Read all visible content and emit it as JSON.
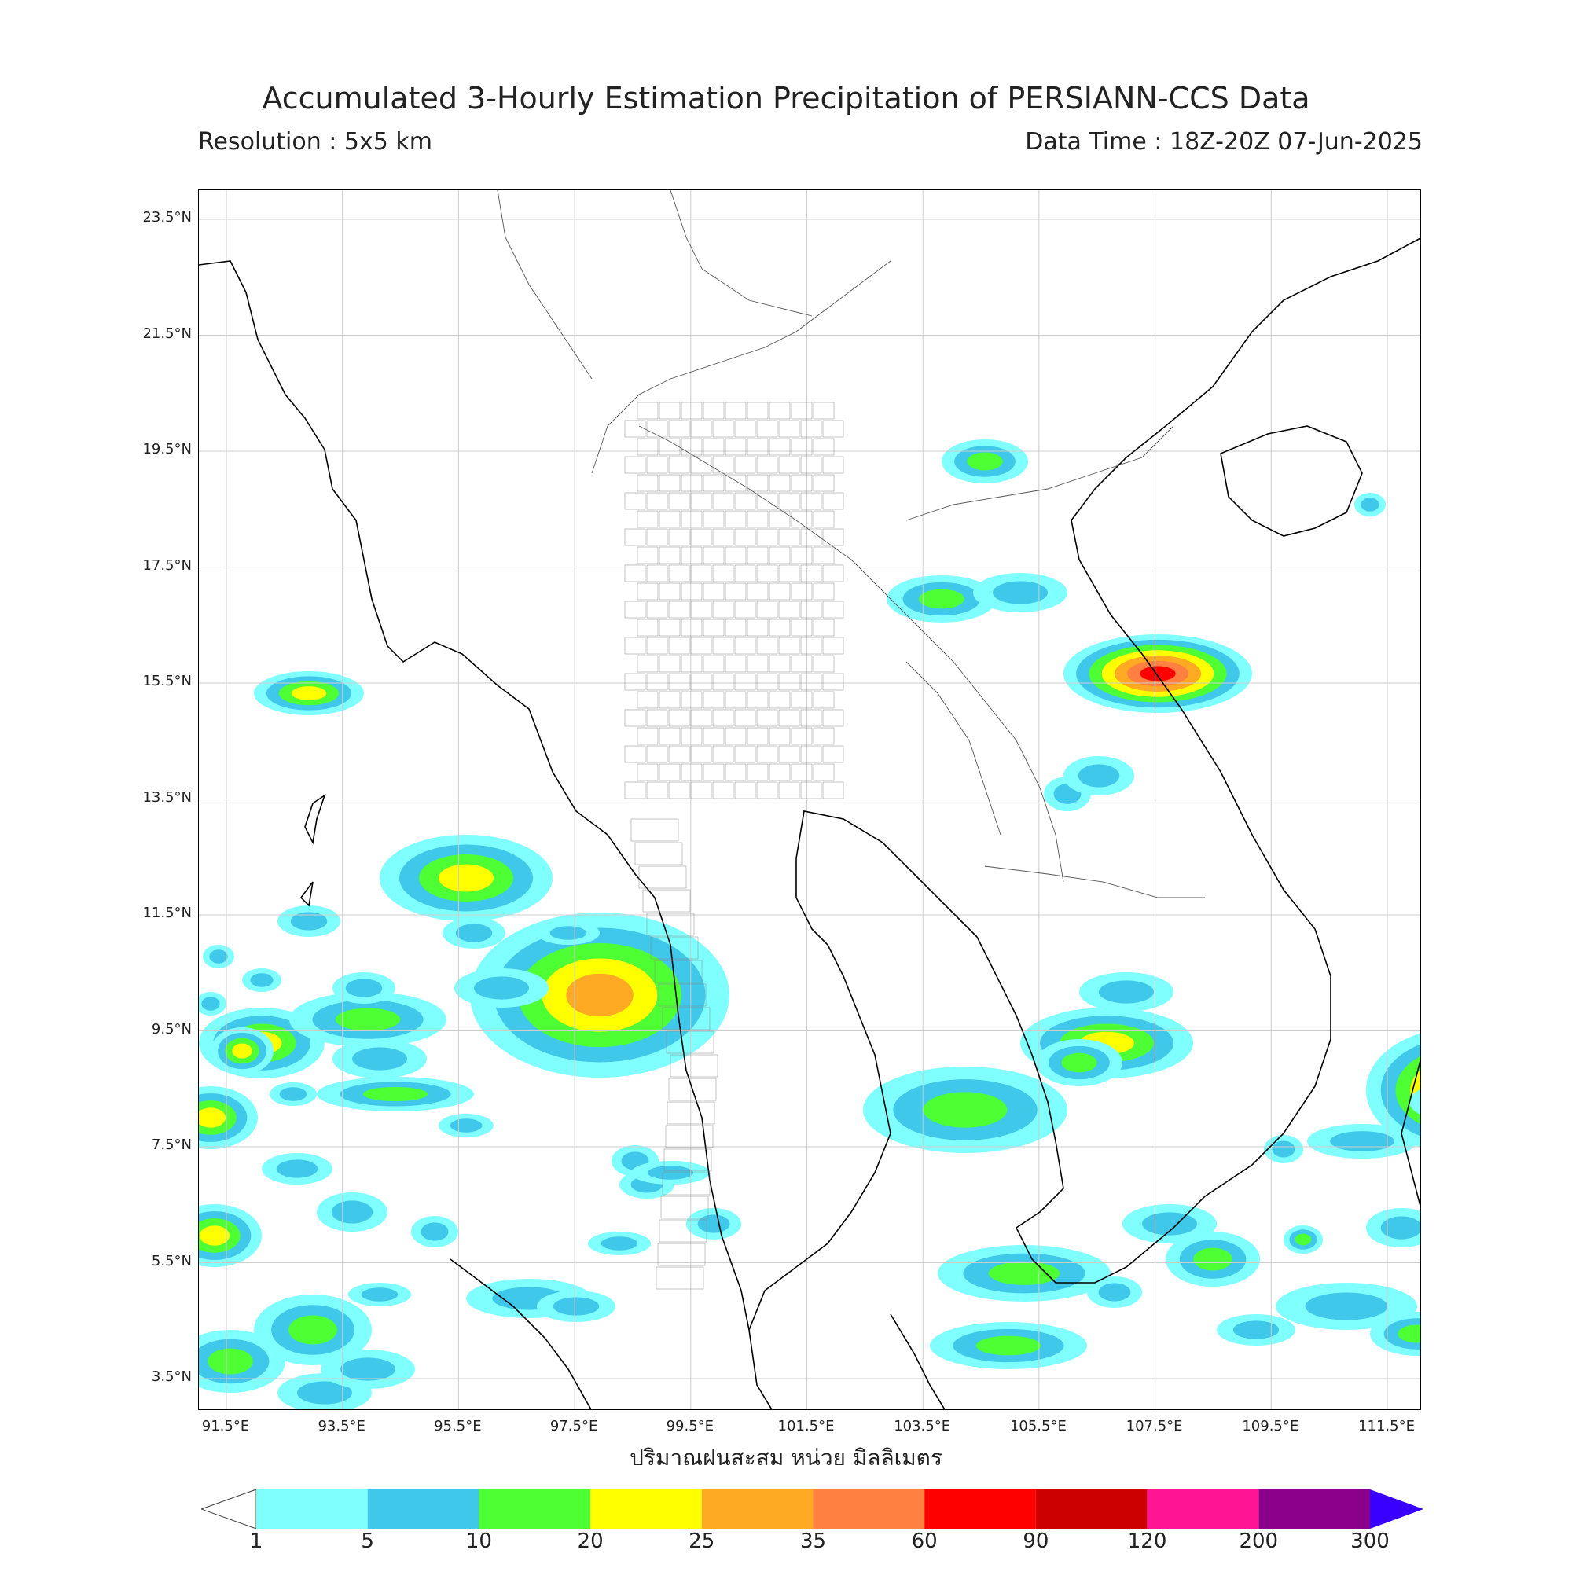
{
  "header": {
    "title": "Accumulated 3-Hourly Estimation Precipitation of PERSIANN-CCS Data",
    "resolution": "Resolution : 5x5 km",
    "data_time": "Data Time : 18Z-20Z 07-Jun-2025"
  },
  "map": {
    "lat_labels": [
      "23.5°N",
      "21.5°N",
      "19.5°N",
      "17.5°N",
      "15.5°N",
      "13.5°N",
      "11.5°N",
      "9.5°N",
      "7.5°N",
      "5.5°N",
      "3.5°N"
    ],
    "lon_labels": [
      "91.5°E",
      "93.5°E",
      "95.5°E",
      "97.5°E",
      "99.5°E",
      "101.5°E",
      "103.5°E",
      "105.5°E",
      "107.5°E",
      "109.5°E",
      "111.5°E"
    ],
    "x_axis_label": "ปริมาณฝนสะสม หน่วย มิลลิเมตร",
    "grid": true,
    "coastline_color": "#000000",
    "border_color": "#555555"
  },
  "colorbar": {
    "ticks": [
      "1",
      "5",
      "10",
      "20",
      "25",
      "35",
      "60",
      "90",
      "120",
      "200",
      "300"
    ],
    "colors": [
      "#80ffff",
      "#40c8ea",
      "#4dff33",
      "#ffff00",
      "#ffaa22",
      "#ff8040",
      "#ff0000",
      "#cc0000",
      "#ff1493",
      "#8b008b",
      "#3a00ff"
    ]
  }
}
